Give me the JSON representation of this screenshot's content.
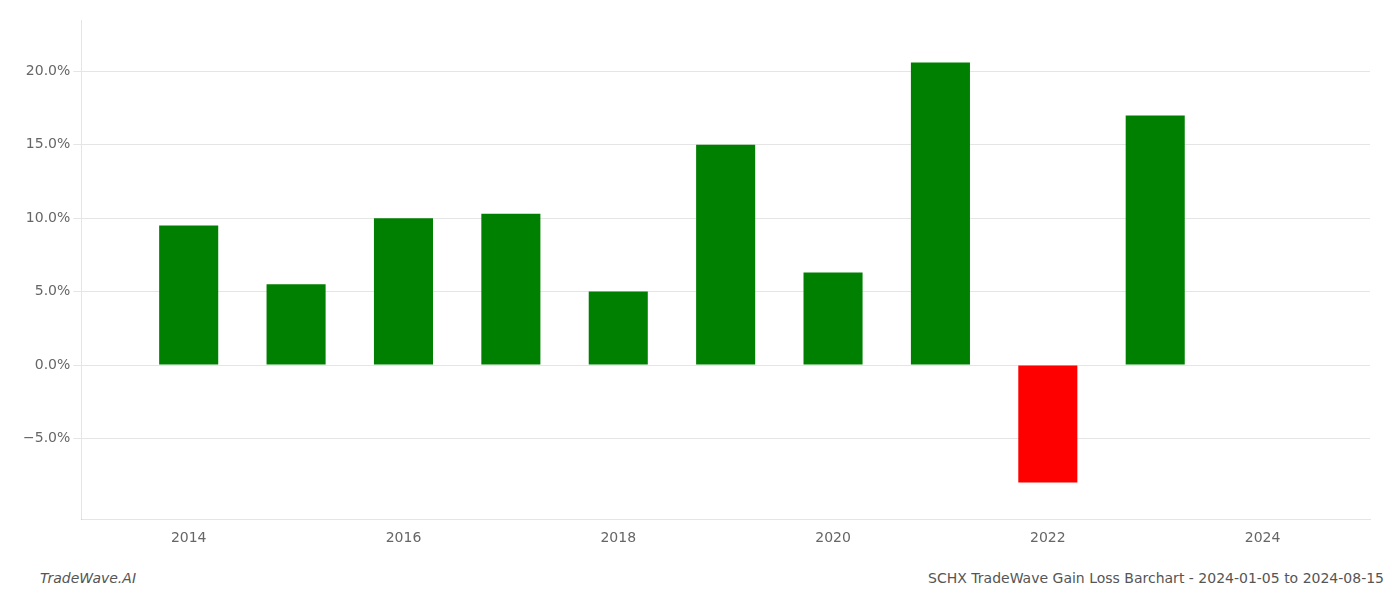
{
  "chart_data": {
    "type": "bar",
    "x": [
      2014,
      2015,
      2016,
      2017,
      2018,
      2019,
      2020,
      2021,
      2022,
      2023
    ],
    "values": [
      0.095,
      0.055,
      0.1,
      0.103,
      0.05,
      0.15,
      0.063,
      0.206,
      -0.08,
      0.17
    ],
    "colors": [
      "#008000",
      "#008000",
      "#008000",
      "#008000",
      "#008000",
      "#008000",
      "#008000",
      "#008000",
      "#ff0000",
      "#008000"
    ],
    "xlim": [
      2013.0,
      2025.0
    ],
    "xticks": [
      2014,
      2016,
      2018,
      2020,
      2022,
      2024
    ],
    "ylim": [
      -0.105,
      0.235
    ],
    "yticks": [
      {
        "value": -0.05,
        "label": "−5.0%"
      },
      {
        "value": 0.0,
        "label": "0.0%"
      },
      {
        "value": 0.05,
        "label": "5.0%"
      },
      {
        "value": 0.1,
        "label": "10.0%"
      },
      {
        "value": 0.15,
        "label": "15.0%"
      },
      {
        "value": 0.2,
        "label": "20.0%"
      }
    ],
    "grid": true,
    "annotations": [
      "TradeWave.AI",
      "SCHX TradeWave Gain Loss Barchart - 2024-01-05 to 2024-08-15"
    ]
  }
}
